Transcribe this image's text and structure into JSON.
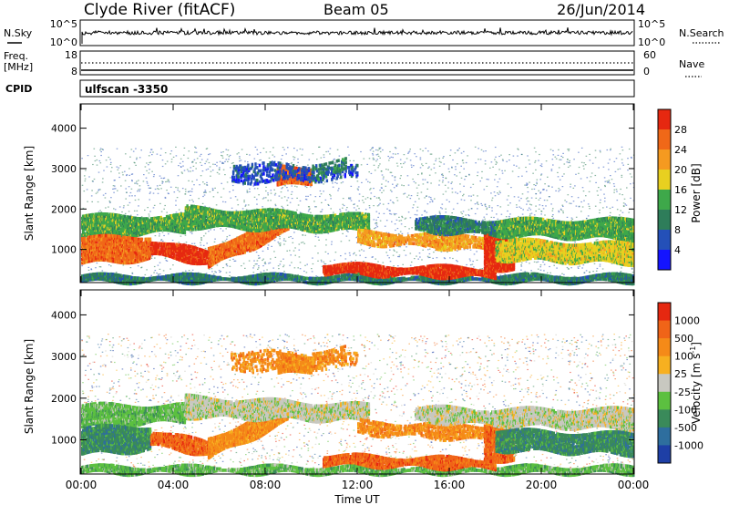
{
  "header": {
    "station": "Clyde River (fitACF)",
    "beam": "Beam 05",
    "date": "26/Jun/2014"
  },
  "nsky_panel": {
    "label": "N.Sky",
    "right_label": "N.Search",
    "left_ticks": [
      "10^5",
      "10^0"
    ],
    "right_ticks": [
      "10^5",
      "10^0"
    ]
  },
  "freq_panel": {
    "label_line1": "Freq.",
    "label_line2": "[MHz]",
    "right_label": "Nave",
    "left_ticks": [
      "18",
      "8"
    ],
    "right_ticks": [
      "60",
      "0"
    ]
  },
  "cpid_panel": {
    "label": "CPID",
    "value": "ulfscan -3350"
  },
  "chart_data": [
    {
      "type": "heatmap",
      "name": "power",
      "ylabel": "Slant Range [km]",
      "y_ticks": [
        "1000",
        "2000",
        "3000",
        "4000"
      ],
      "ylim": [
        180,
        4600
      ],
      "colorbar_label": "Power [dB]",
      "colorbar_ticks": [
        "4",
        "8",
        "12",
        "16",
        "20",
        "24",
        "28"
      ],
      "colorbar_colors": [
        "#1414ff",
        "#2450b8",
        "#2e7d5a",
        "#3ea84a",
        "#e8d020",
        "#f59a20",
        "#f06818",
        "#e62810"
      ]
    },
    {
      "type": "heatmap",
      "name": "velocity",
      "ylabel": "Slant Range [km]",
      "y_ticks": [
        "1000",
        "2000",
        "3000",
        "4000"
      ],
      "ylim": [
        180,
        4600
      ],
      "colorbar_label": "Velocity [m s",
      "colorbar_label_sup": "-1",
      "colorbar_label_end": "]",
      "colorbar_ticks": [
        "1000",
        "500",
        "100",
        "25",
        "-25",
        "-100",
        "-500",
        "-1000"
      ],
      "colorbar_colors": [
        "#1e3fa6",
        "#2e6e9e",
        "#3a8a5a",
        "#5cc040",
        "#c8c8c0",
        "#f7b020",
        "#f58a18",
        "#f06418",
        "#e62810"
      ]
    }
  ],
  "x_axis": {
    "label": "Time UT",
    "ticks": [
      "00:00",
      "04:00",
      "08:00",
      "12:00",
      "16:00",
      "20:00",
      "00:00"
    ]
  }
}
